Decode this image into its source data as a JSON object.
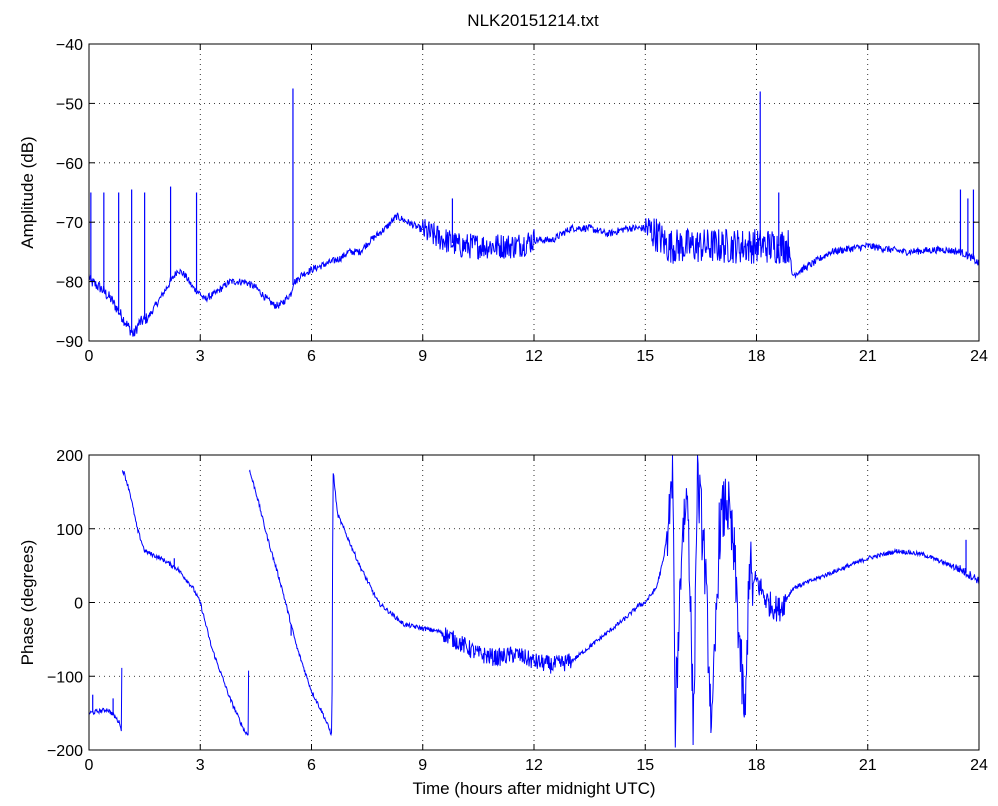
{
  "figure": {
    "title": "NLK20151214.txt"
  },
  "chart_data": [
    {
      "type": "line",
      "title": "NLK20151214.txt",
      "xlabel": "",
      "ylabel": "Amplitude (dB)",
      "xlim": [
        0,
        24
      ],
      "ylim": [
        -90,
        -40
      ],
      "xticks": [
        0,
        3,
        6,
        9,
        12,
        15,
        18,
        21,
        24
      ],
      "yticks": [
        -90,
        -80,
        -70,
        -60,
        -50,
        -40
      ],
      "xtick_labels": [
        "0",
        "3",
        "6",
        "9",
        "12",
        "15",
        "18",
        "21",
        "24"
      ],
      "ytick_labels": [
        "−90",
        "−80",
        "−70",
        "−60",
        "−50",
        "−40"
      ],
      "grid": true,
      "color": "#0000ff",
      "series": [
        {
          "x": [
            0.0,
            0.05,
            0.3,
            0.6,
            0.9,
            1.1,
            1.2,
            1.35,
            1.6,
            1.9,
            2.2,
            2.4,
            2.6,
            2.8,
            3.0,
            3.1,
            3.4,
            3.8,
            4.2,
            4.5,
            4.8,
            5.0,
            5.15,
            5.3,
            5.45,
            5.52,
            5.58,
            5.7,
            6.0,
            6.4,
            6.8,
            7.0,
            7.3,
            7.6,
            8.0,
            8.3,
            8.6,
            8.9,
            9.2,
            9.6,
            10.0,
            10.5,
            11.0,
            11.5,
            12.0,
            12.5,
            13.0,
            13.5,
            14.0,
            14.5,
            15.0,
            15.3,
            15.6,
            16.0,
            16.5,
            17.0,
            17.5,
            18.0,
            18.5,
            18.9,
            18.95,
            19.5,
            20.0,
            20.5,
            21.0,
            21.5,
            22.0,
            22.5,
            23.0,
            23.5,
            23.8,
            24.0
          ],
          "y": [
            -79,
            -80,
            -81,
            -83,
            -86,
            -88,
            -89,
            -87,
            -86,
            -83,
            -80,
            -78,
            -79,
            -81,
            -82,
            -83,
            -82,
            -80,
            -80,
            -81,
            -83,
            -84,
            -84,
            -83,
            -82,
            -80,
            -80,
            -79,
            -78,
            -77,
            -76,
            -75,
            -75,
            -73,
            -71,
            -69,
            -70,
            -71,
            -72,
            -73,
            -74,
            -74,
            -74,
            -74,
            -73,
            -73,
            -71,
            -71,
            -72,
            -71,
            -71,
            -72,
            -74,
            -74,
            -74,
            -74,
            -74,
            -74,
            -74,
            -74,
            -79,
            -77,
            -75,
            -74.5,
            -74,
            -74.5,
            -75,
            -74.8,
            -74.6,
            -75,
            -76,
            -77
          ]
        }
      ],
      "spikes": [
        {
          "x": 0.05,
          "y": -65
        },
        {
          "x": 0.4,
          "y": -65
        },
        {
          "x": 0.8,
          "y": -65
        },
        {
          "x": 1.15,
          "y": -64.5
        },
        {
          "x": 1.5,
          "y": -65
        },
        {
          "x": 2.2,
          "y": -64
        },
        {
          "x": 2.9,
          "y": -65
        },
        {
          "x": 5.5,
          "y": -47.5
        },
        {
          "x": 9.8,
          "y": -66
        },
        {
          "x": 18.1,
          "y": -48
        },
        {
          "x": 18.6,
          "y": -65
        },
        {
          "x": 23.5,
          "y": -64.5
        },
        {
          "x": 23.7,
          "y": -66
        },
        {
          "x": 23.85,
          "y": -64.5
        }
      ]
    },
    {
      "type": "line",
      "title": "",
      "xlabel": "Time (hours after midnight UTC)",
      "ylabel": "Phase (degrees)",
      "xlim": [
        0,
        24
      ],
      "ylim": [
        -200,
        200
      ],
      "xticks": [
        0,
        3,
        6,
        9,
        12,
        15,
        18,
        21,
        24
      ],
      "yticks": [
        -200,
        -100,
        0,
        100,
        200
      ],
      "xtick_labels": [
        "0",
        "3",
        "6",
        "9",
        "12",
        "15",
        "18",
        "21",
        "24"
      ],
      "ytick_labels": [
        "−200",
        "−100",
        "0",
        "100",
        "200"
      ],
      "grid": true,
      "color": "#0000ff",
      "series": [
        {
          "x": [
            0.0,
            0.2,
            0.5,
            0.7,
            0.85,
            0.88,
            0.9,
            0.95,
            1.1,
            1.3,
            1.5,
            2.0,
            2.4,
            2.8,
            3.0,
            3.3,
            3.8,
            4.2,
            4.3,
            4.32,
            4.35,
            4.5,
            4.8,
            5.2,
            5.6,
            6.0,
            6.3,
            6.55,
            6.58,
            6.6,
            6.7,
            7.3,
            7.8,
            8.5,
            9.0,
            9.5,
            10.0,
            10.5,
            11.0,
            11.5,
            12.0,
            12.5,
            13.0,
            13.5,
            14.0,
            14.5,
            14.8,
            15.0,
            15.3,
            15.5,
            15.65,
            15.75,
            15.8,
            16.0,
            16.15,
            16.3,
            16.4,
            16.5,
            16.6,
            16.8,
            17.0,
            17.2,
            17.4,
            17.6,
            17.7,
            17.8,
            17.9,
            18.0,
            18.3,
            18.6,
            19.0,
            20.0,
            21.0,
            21.8,
            22.5,
            23.0,
            23.5,
            24.0
          ],
          "y": [
            -150,
            -148,
            -145,
            -155,
            -165,
            -180,
            180,
            175,
            150,
            100,
            70,
            58,
            45,
            20,
            0,
            -60,
            -130,
            -175,
            -180,
            180,
            175,
            150,
            90,
            20,
            -60,
            -120,
            -150,
            -180,
            180,
            170,
            120,
            50,
            0,
            -30,
            -35,
            -40,
            -55,
            -70,
            -75,
            -70,
            -80,
            -85,
            -80,
            -60,
            -40,
            -20,
            -5,
            0,
            20,
            60,
            120,
            170,
            -170,
            100,
            150,
            -180,
            170,
            120,
            60,
            -180,
            100,
            140,
            60,
            -100,
            -165,
            60,
            20,
            30,
            0,
            -10,
            20,
            40,
            60,
            70,
            65,
            55,
            45,
            30
          ]
        }
      ],
      "spikes": [
        {
          "x": 0.1,
          "y": -125
        },
        {
          "x": 0.65,
          "y": -130
        },
        {
          "x": 2.3,
          "y": 60
        },
        {
          "x": 5.45,
          "y": -45
        },
        {
          "x": 23.65,
          "y": 85
        }
      ]
    }
  ]
}
